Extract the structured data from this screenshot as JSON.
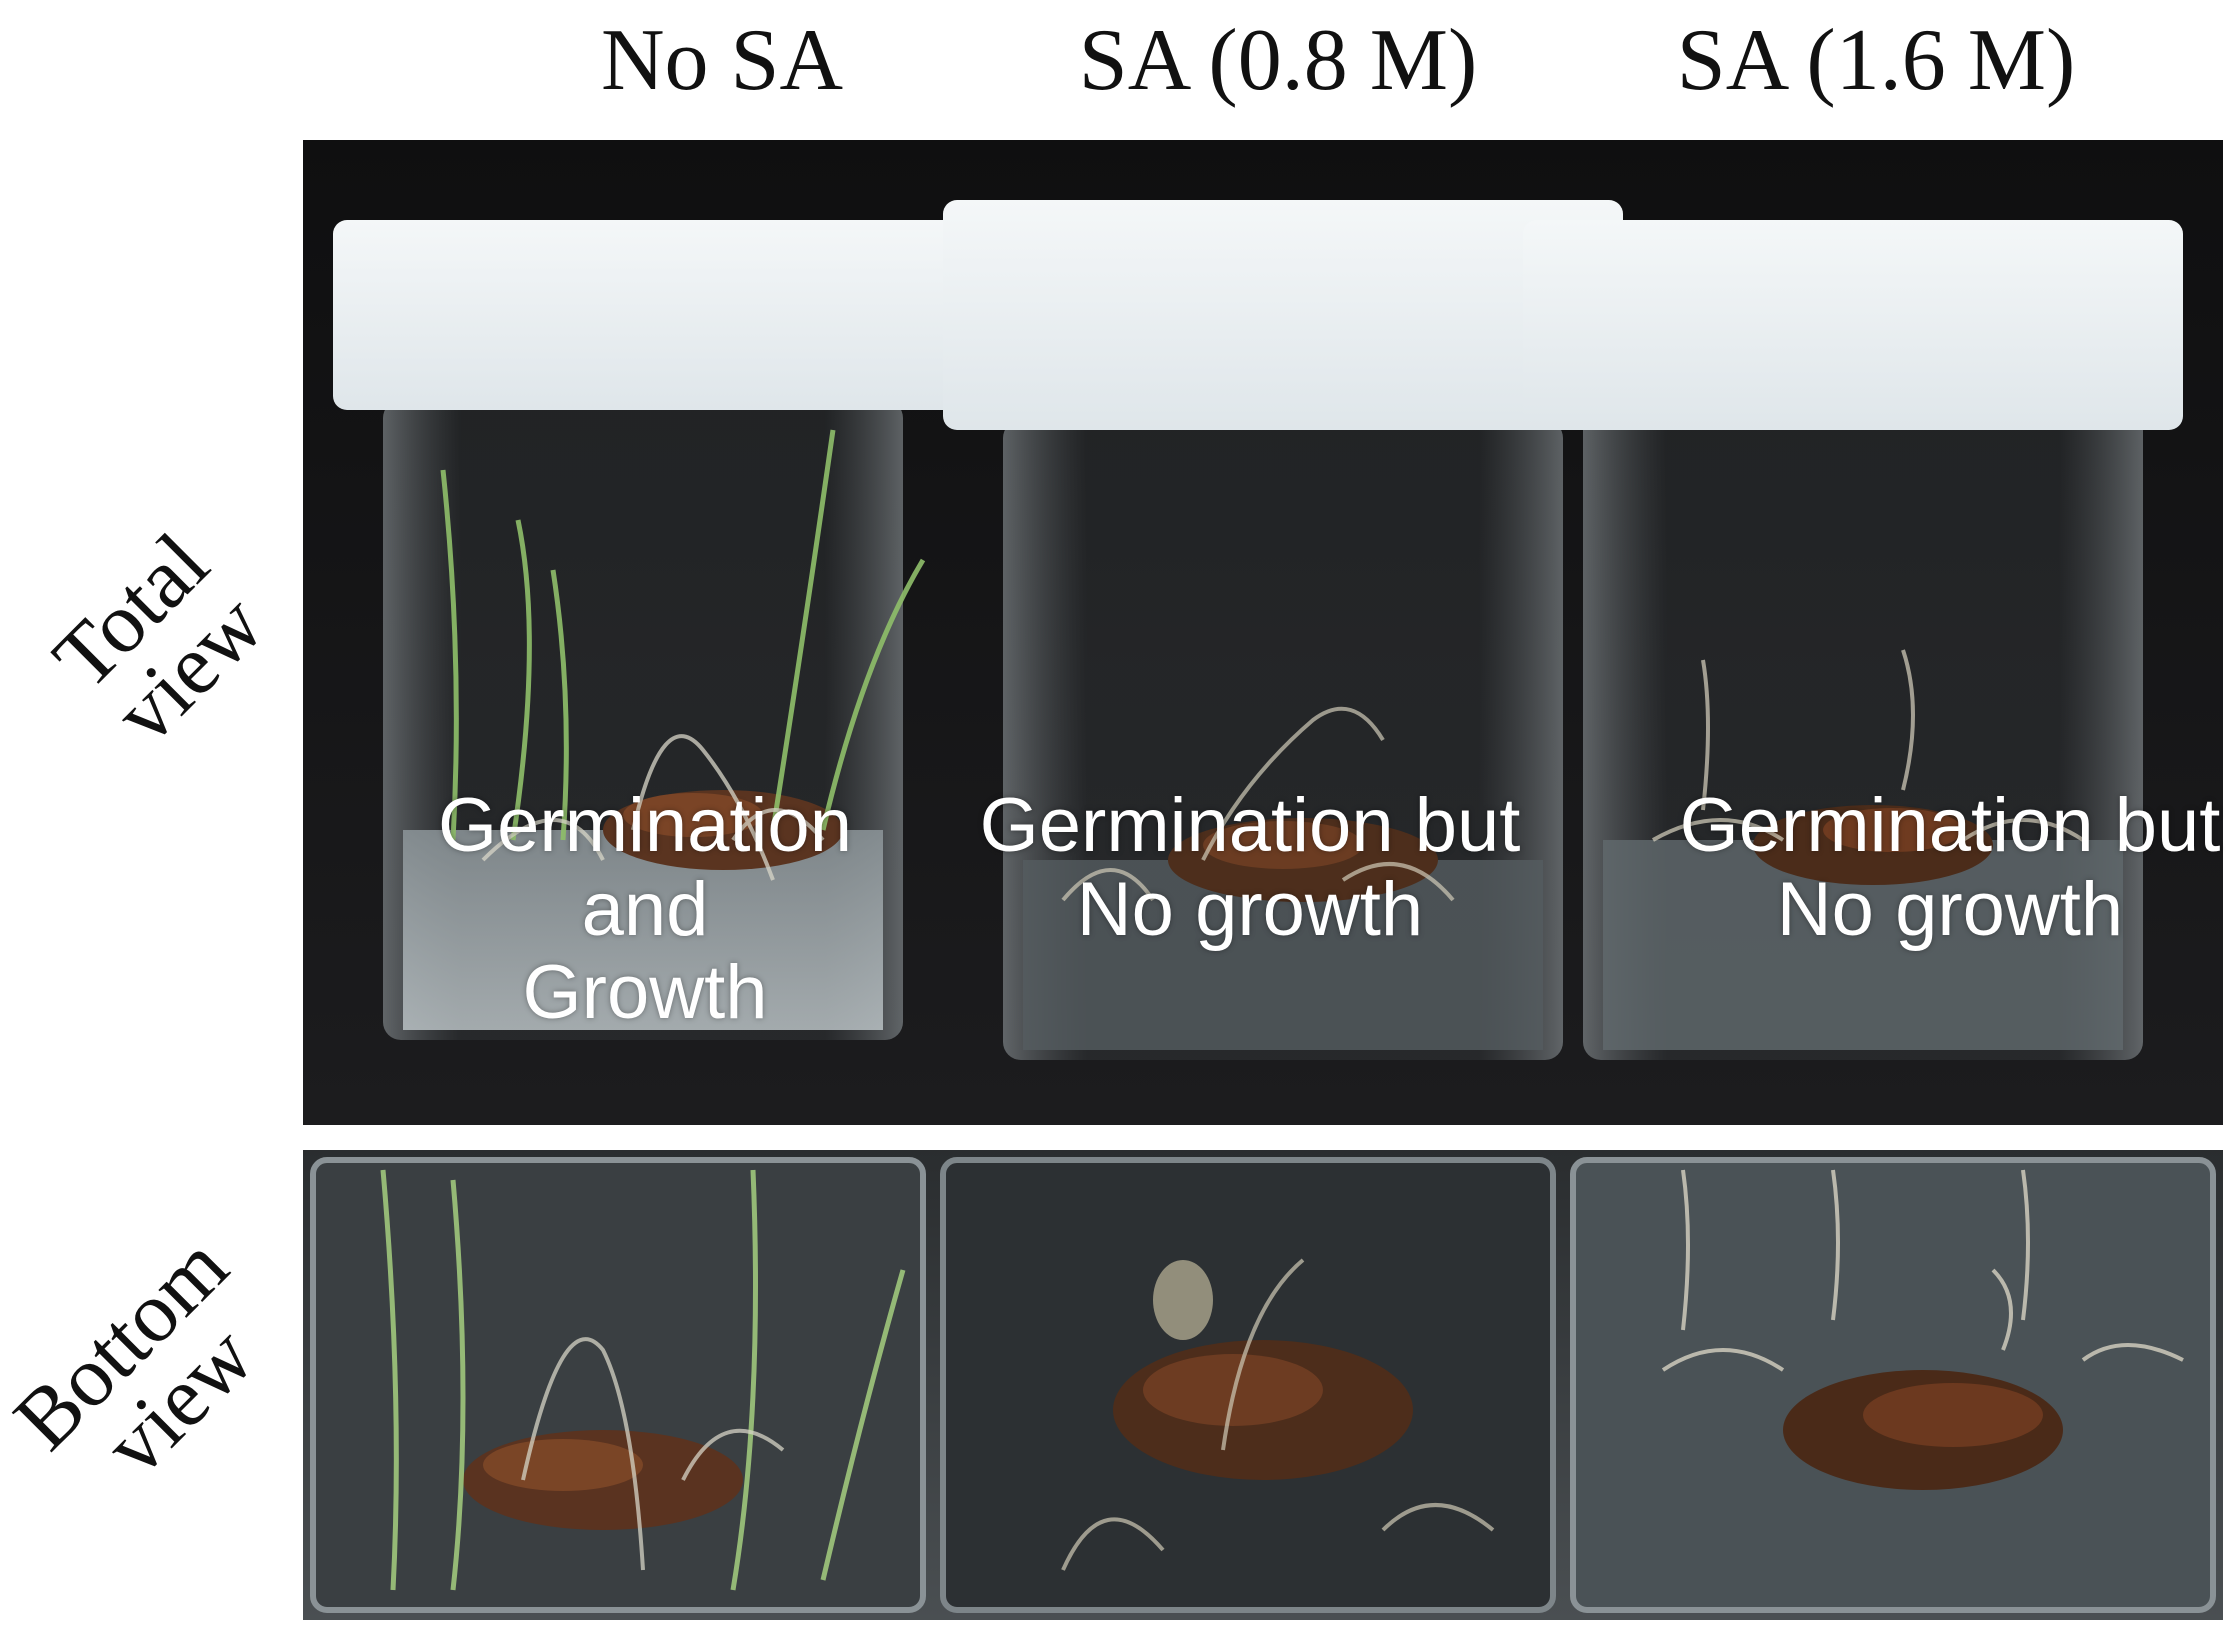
{
  "columns": [
    {
      "label": "No SA",
      "caption": [
        "Germination and",
        "Growth"
      ]
    },
    {
      "label": "SA (0.8 M)",
      "caption": [
        "Germination but",
        "No growth"
      ]
    },
    {
      "label": "SA (1.6 M)",
      "caption": [
        "Germination but",
        "No growth"
      ]
    }
  ],
  "rows": [
    {
      "label": [
        "Total",
        "view"
      ]
    },
    {
      "label": [
        "Bottom",
        "view"
      ]
    }
  ]
}
